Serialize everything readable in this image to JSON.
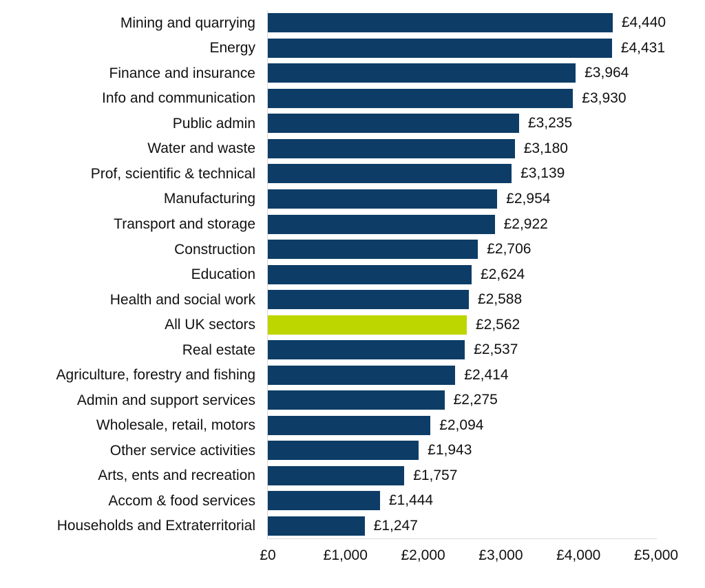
{
  "chart_data": {
    "type": "bar",
    "orientation": "horizontal",
    "title": "",
    "xlabel": "",
    "ylabel": "",
    "xlim": [
      0,
      5000
    ],
    "grid": false,
    "legend": false,
    "data_labels": true,
    "categories": [
      "Mining and quarrying",
      "Energy",
      "Finance and insurance",
      "Info and communication",
      "Public admin",
      "Water and waste",
      "Prof, scientific & technical",
      "Manufacturing",
      "Transport and storage",
      "Construction",
      "Education",
      "Health and social work",
      "All UK sectors",
      "Real estate",
      "Agriculture, forestry and fishing",
      "Admin and support services",
      "Wholesale, retail, motors",
      "Other service activities",
      "Arts, ents and recreation",
      "Accom & food services",
      "Households and Extraterritorial"
    ],
    "values": [
      4440,
      4431,
      3964,
      3930,
      3235,
      3180,
      3139,
      2954,
      2922,
      2706,
      2624,
      2588,
      2562,
      2537,
      2414,
      2275,
      2094,
      1943,
      1757,
      1444,
      1247
    ],
    "value_labels": [
      "£4,440",
      "£4,431",
      "£3,964",
      "£3,930",
      "£3,235",
      "£3,180",
      "£3,139",
      "£2,954",
      "£2,922",
      "£2,706",
      "£2,624",
      "£2,588",
      "£2,562",
      "£2,537",
      "£2,414",
      "£2,275",
      "£2,094",
      "£1,943",
      "£1,757",
      "£1,444",
      "£1,247"
    ],
    "highlight_index": 12,
    "highlight_category": "All UK sectors",
    "x_ticks": [
      "£0",
      "£1,000",
      "£2,000",
      "£3,000",
      "£4,000",
      "£5,000"
    ],
    "colors": {
      "bar": "#0d3d66",
      "highlight": "#bed600",
      "axis_line": "#d9d9d9",
      "text": "#111111",
      "background": "#ffffff"
    }
  }
}
